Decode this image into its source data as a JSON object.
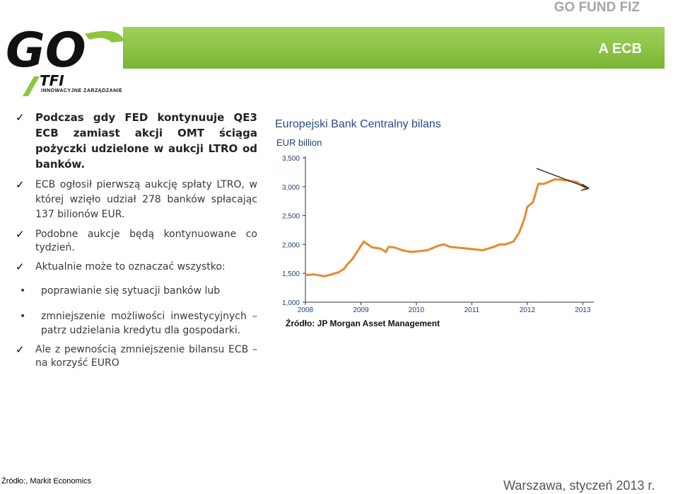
{
  "header": {
    "brand": "GO FUND FIZ",
    "title": "A ECB"
  },
  "logo": {
    "big_text": "GO",
    "tfi": "TFI",
    "tagline": "INNOWACYJNE ZARZĄDZANIE"
  },
  "bullets": [
    {
      "mark": "✓",
      "text": "Podczas gdy FED kontynuuje QE3 ECB zamiast akcji OMT ściąga pożyczki udzielone w aukcji LTRO od banków."
    },
    {
      "mark": "✓",
      "text": "ECB ogłosił pierwszą aukcję spłaty LTRO, w której wzięło udział 278 banków spłacając 137 bilionów EUR."
    },
    {
      "mark": "✓",
      "text": "Podobne aukcje będą kontynuowane co tydzień."
    },
    {
      "mark": "✓",
      "text": "Aktualnie może to oznaczać wszystko:"
    },
    {
      "mark": "•",
      "text": "poprawianie się sytuacji banków lub"
    },
    {
      "mark": "•",
      "text": "zmniejszenie możliwości inwestycyjnych – patrz udzielania kredytu dla gospodarki."
    },
    {
      "mark": "✓",
      "text": "Ale z pewnością zmniejszenie bilansu ECB – na korzyść EURO"
    }
  ],
  "chart_title": "Europejski Bank Centralny bilans",
  "chart_source": "Źródło: JP Morgan Asset Management",
  "footer": {
    "source": "Źródło:, Markit Economics",
    "date": "Warszawa, styczeń 2013 r."
  },
  "colors": {
    "accent_green": "#8cc63f",
    "line_orange": "#e8892e",
    "title_blue": "#2a4a8a"
  },
  "chart_data": {
    "type": "line",
    "unit_label": "EUR billion",
    "x_ticks": [
      "2008",
      "2009",
      "2010",
      "2011",
      "2012",
      "2013"
    ],
    "y_ticks": [
      "1,000",
      "1,500",
      "2,000",
      "2,500",
      "3,000",
      "3,500"
    ],
    "ylim": [
      1000,
      3500
    ],
    "xlim": [
      2008,
      2013.2
    ],
    "grid": false,
    "series": [
      {
        "x": [
          2008.0,
          2008.15,
          2008.35,
          2008.5,
          2008.6,
          2008.7,
          2008.75,
          2008.85,
          2008.95,
          2009.05,
          2009.2,
          2009.35,
          2009.45,
          2009.5,
          2009.6,
          2009.75,
          2009.9,
          2010.0,
          2010.2,
          2010.4,
          2010.5,
          2010.6,
          2010.8,
          2011.0,
          2011.2,
          2011.4,
          2011.5,
          2011.6,
          2011.75,
          2011.85,
          2011.95,
          2012.0,
          2012.1,
          2012.2,
          2012.3,
          2012.5,
          2012.7,
          2012.9,
          2013.0,
          2013.08
        ],
        "values": [
          1470,
          1480,
          1450,
          1490,
          1520,
          1580,
          1650,
          1750,
          1900,
          2050,
          1950,
          1930,
          1870,
          1960,
          1950,
          1900,
          1870,
          1880,
          1900,
          1980,
          2000,
          1960,
          1940,
          1920,
          1900,
          1960,
          2000,
          2000,
          2050,
          2200,
          2450,
          2650,
          2730,
          3050,
          3050,
          3130,
          3110,
          3080,
          3010,
          2950
        ]
      }
    ],
    "annotation": "arrow indicating decline"
  }
}
